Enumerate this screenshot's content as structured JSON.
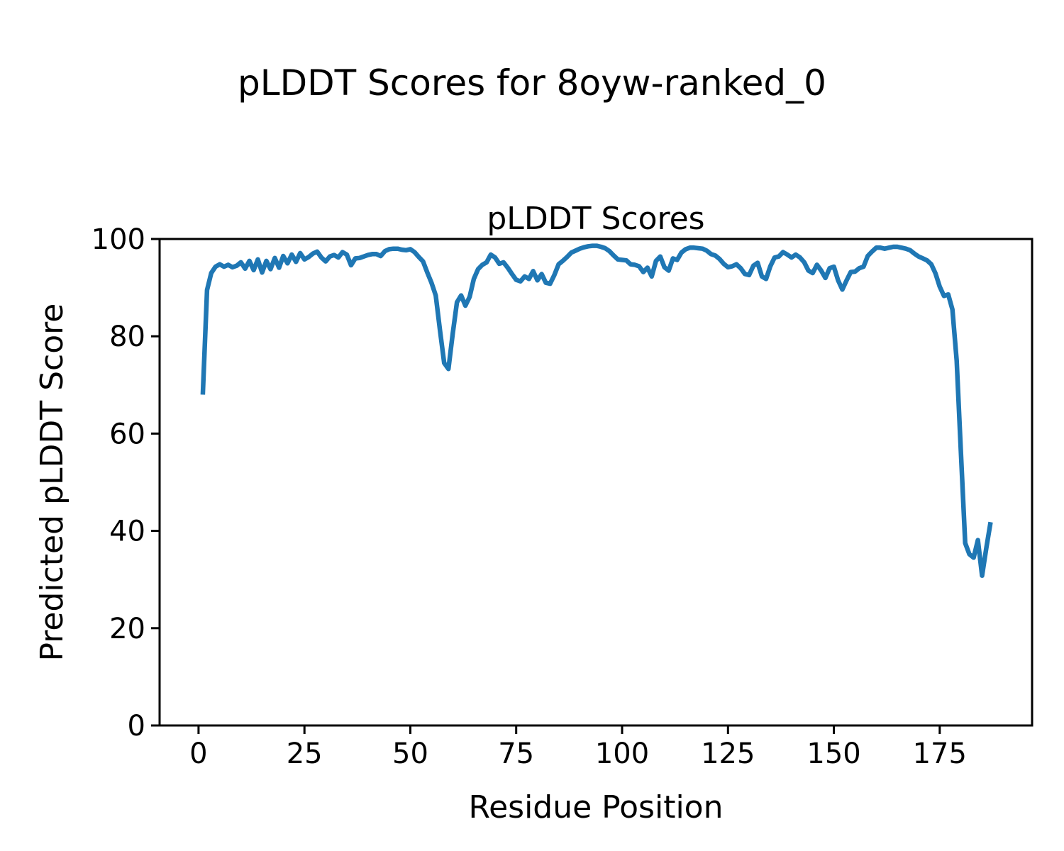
{
  "figure": {
    "title": "pLDDT Scores for 8oyw-ranked_0",
    "background": "#ffffff",
    "text_color": "#000000"
  },
  "chart_data": {
    "type": "line",
    "title": "pLDDT Scores",
    "xlabel": "Residue Position",
    "ylabel": "Predicted pLDDT Score",
    "legend": "none",
    "grid": false,
    "line_color": "#1f77b4",
    "xlim": [
      -9.2,
      196.8
    ],
    "ylim": [
      0,
      100
    ],
    "xticks": [
      0,
      25,
      50,
      75,
      100,
      125,
      150,
      175
    ],
    "yticks": [
      0,
      20,
      40,
      60,
      80,
      100
    ],
    "x_start": 1,
    "x_step": 1,
    "values": [
      68.0,
      89.5,
      93.0,
      94.3,
      94.8,
      94.3,
      94.7,
      94.2,
      94.5,
      95.2,
      93.9,
      95.5,
      93.6,
      95.8,
      93.1,
      95.5,
      93.8,
      96.1,
      94.1,
      96.5,
      95.0,
      96.8,
      95.3,
      97.1,
      95.8,
      96.3,
      97.0,
      97.4,
      96.2,
      95.4,
      96.4,
      96.7,
      96.2,
      97.3,
      96.8,
      94.6,
      96.0,
      96.1,
      96.4,
      96.7,
      96.9,
      96.9,
      96.5,
      97.5,
      97.9,
      98.0,
      98.0,
      97.8,
      97.7,
      97.9,
      97.3,
      96.3,
      95.4,
      93.1,
      91.0,
      88.4,
      81.2,
      74.5,
      73.3,
      80.5,
      87.0,
      88.4,
      86.3,
      88.1,
      91.8,
      93.8,
      94.7,
      95.2,
      96.8,
      96.2,
      94.9,
      95.2,
      94.1,
      92.8,
      91.6,
      91.3,
      92.3,
      91.8,
      93.4,
      91.5,
      92.8,
      91.0,
      90.8,
      92.6,
      94.8,
      95.5,
      96.3,
      97.2,
      97.6,
      98.0,
      98.3,
      98.5,
      98.6,
      98.6,
      98.4,
      98.1,
      97.5,
      96.6,
      95.8,
      95.7,
      95.6,
      94.8,
      94.7,
      94.4,
      93.2,
      94.1,
      92.3,
      95.5,
      96.4,
      94.2,
      93.5,
      96.0,
      95.7,
      97.2,
      97.9,
      98.2,
      98.2,
      98.1,
      98.0,
      97.6,
      96.9,
      96.6,
      95.9,
      94.9,
      94.2,
      94.4,
      94.8,
      94.0,
      92.8,
      92.6,
      94.5,
      95.1,
      92.3,
      91.8,
      94.4,
      96.2,
      96.4,
      97.3,
      96.8,
      96.2,
      96.8,
      96.2,
      95.2,
      93.5,
      93.0,
      94.7,
      93.5,
      92.0,
      94.0,
      94.3,
      91.5,
      89.6,
      91.5,
      93.2,
      93.3,
      94.0,
      94.3,
      96.5,
      97.4,
      98.2,
      98.2,
      98.0,
      98.2,
      98.4,
      98.4,
      98.2,
      98.0,
      97.7,
      97.0,
      96.4,
      96.0,
      95.6,
      94.8,
      92.9,
      90.2,
      88.3,
      88.6,
      85.5,
      75.0,
      56.0,
      37.5,
      35.2,
      34.5,
      38.1,
      30.8,
      36.5,
      41.8
    ]
  }
}
